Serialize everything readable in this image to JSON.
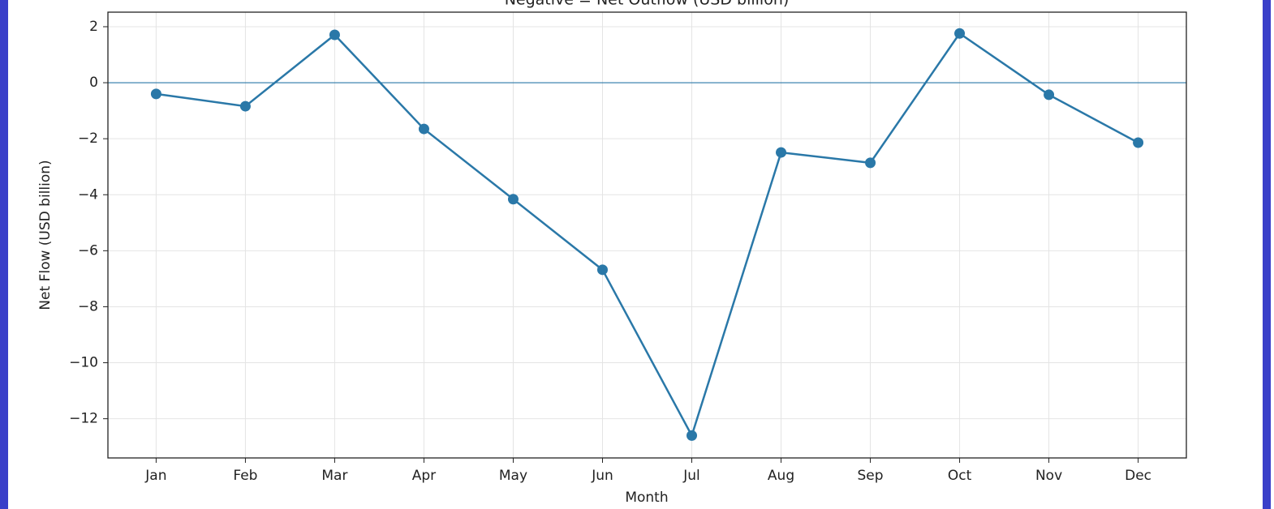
{
  "chart_data": {
    "type": "line",
    "title": "Negative = Net Outflow (USD billion)",
    "xlabel": "Month",
    "ylabel": "Net Flow (USD billion)",
    "categories": [
      "Jan",
      "Feb",
      "Mar",
      "Apr",
      "May",
      "Jun",
      "Jul",
      "Aug",
      "Sep",
      "Oct",
      "Nov",
      "Dec"
    ],
    "series": [
      {
        "color": "#2a78a8",
        "values": [
          -0.4,
          -0.84,
          1.71,
          -1.65,
          -4.16,
          -6.68,
          -12.6,
          -2.49,
          -2.86,
          1.76,
          -0.43,
          -2.14
        ]
      }
    ],
    "ylim": [
      -13.4,
      2.52
    ],
    "yticks": [
      {
        "value": -12,
        "label": "−12"
      },
      {
        "value": -10,
        "label": "−10"
      },
      {
        "value": -8,
        "label": "−8"
      },
      {
        "value": -6,
        "label": "−6"
      },
      {
        "value": -4,
        "label": "−4"
      },
      {
        "value": -2,
        "label": "−2"
      },
      0,
      2
    ],
    "reference_line": 0,
    "grid": true
  }
}
